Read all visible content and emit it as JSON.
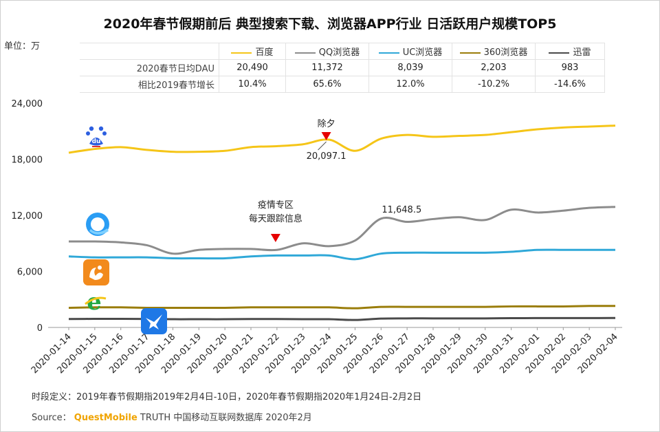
{
  "title": "2020年春节假期前后 典型搜索下载、浏览器APP行业 日活跃用户规模TOP5",
  "unit_label": "单位：万",
  "summary_table": {
    "row_labels": [
      "2020春节日均DAU",
      "相比2019春节增长"
    ],
    "columns": [
      {
        "name": "百度",
        "color": "#f5c518",
        "dau": "20,490",
        "growth": "10.4%"
      },
      {
        "name": "QQ浏览器",
        "color": "#8c8c8c",
        "dau": "11,372",
        "growth": "65.6%"
      },
      {
        "name": "UC浏览器",
        "color": "#2fa8d8",
        "dau": "8,039",
        "growth": "12.0%"
      },
      {
        "name": "360浏览器",
        "color": "#9a7d0a",
        "dau": "2,203",
        "growth": "-10.2%"
      },
      {
        "name": "迅雷",
        "color": "#4a4a4a",
        "dau": "983",
        "growth": "-14.6%"
      }
    ]
  },
  "chart_data": {
    "type": "line",
    "x": [
      "2020-01-14",
      "2020-01-15",
      "2020-01-16",
      "2020-01-17",
      "2020-01-18",
      "2020-01-19",
      "2020-01-20",
      "2020-01-21",
      "2020-01-22",
      "2020-01-23",
      "2020-01-24",
      "2020-01-25",
      "2020-01-26",
      "2020-01-27",
      "2020-01-28",
      "2020-01-29",
      "2020-01-30",
      "2020-01-31",
      "2020-02-01",
      "2020-02-02",
      "2020-02-03",
      "2020-02-04"
    ],
    "yticks": [
      0,
      6000,
      12000,
      18000,
      24000
    ],
    "ytick_labels": [
      "0",
      "6,000",
      "12,000",
      "18,000",
      "24,000"
    ],
    "ylim": [
      0,
      24000
    ],
    "series": [
      {
        "name": "百度",
        "color": "#f5c518",
        "values": [
          18700,
          19100,
          19300,
          19000,
          18800,
          18800,
          18900,
          19300,
          19400,
          19600,
          20097,
          18900,
          20200,
          20600,
          20400,
          20500,
          20600,
          20900,
          21200,
          21400,
          21500,
          21600
        ]
      },
      {
        "name": "QQ浏览器",
        "color": "#8c8c8c",
        "values": [
          9200,
          9200,
          9100,
          8800,
          7900,
          8300,
          8400,
          8400,
          8300,
          9000,
          8700,
          9300,
          11648,
          11300,
          11600,
          11800,
          11500,
          12600,
          12300,
          12500,
          12800,
          12900
        ]
      },
      {
        "name": "UC浏览器",
        "color": "#2fa8d8",
        "values": [
          7600,
          7500,
          7500,
          7500,
          7400,
          7400,
          7400,
          7600,
          7700,
          7700,
          7700,
          7300,
          7900,
          8000,
          8000,
          8000,
          8000,
          8100,
          8300,
          8300,
          8300,
          8300
        ]
      },
      {
        "name": "360浏览器",
        "color": "#9a7d0a",
        "values": [
          2100,
          2150,
          2150,
          2100,
          2100,
          2100,
          2100,
          2150,
          2150,
          2150,
          2150,
          2050,
          2200,
          2200,
          2200,
          2200,
          2200,
          2250,
          2250,
          2250,
          2300,
          2300
        ]
      },
      {
        "name": "迅雷",
        "color": "#4a4a4a",
        "values": [
          900,
          920,
          920,
          900,
          880,
          880,
          880,
          900,
          900,
          880,
          880,
          800,
          950,
          970,
          970,
          970,
          970,
          990,
          1000,
          1000,
          1000,
          1010
        ]
      }
    ],
    "annotations": [
      {
        "label": "除夕",
        "x": "2020-01-24",
        "value": "20,097.1"
      },
      {
        "label": "疫情专区",
        "label2": "每天跟踪信息",
        "x": "2020-01-22"
      },
      {
        "label": "",
        "x": "2020-01-26",
        "value": "11,648.5"
      }
    ],
    "grid": false,
    "legend": "top"
  },
  "footnote": "时段定义：2019年春节假期指2019年2月4日-10日，2020年春节假期指2020年1月24日-2月2日",
  "source": {
    "prefix": "Source：",
    "brand": "QuestMobile",
    "rest": " TRUTH 中国移动互联网数据库 2020年2月"
  },
  "icons": [
    "baidu-icon",
    "qq-browser-icon",
    "uc-browser-icon",
    "360-browser-icon",
    "xunlei-icon"
  ]
}
